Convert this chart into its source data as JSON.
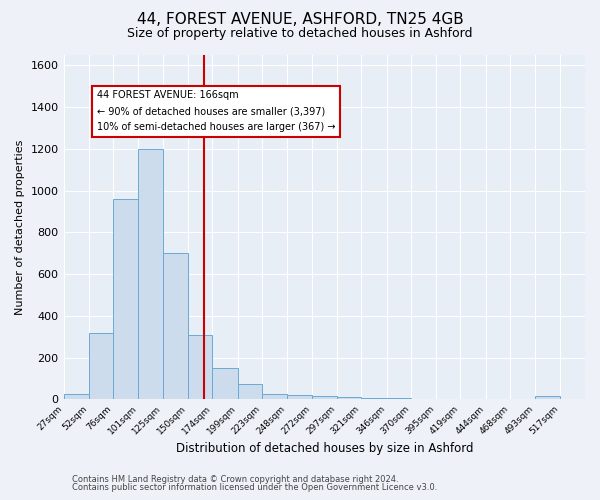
{
  "title": "44, FOREST AVENUE, ASHFORD, TN25 4GB",
  "subtitle": "Size of property relative to detached houses in Ashford",
  "xlabel": "Distribution of detached houses by size in Ashford",
  "ylabel": "Number of detached properties",
  "bin_edges": [
    27,
    52,
    76,
    101,
    125,
    150,
    174,
    199,
    223,
    248,
    272,
    297,
    321,
    346,
    370,
    395,
    419,
    444,
    468,
    493,
    517,
    542
  ],
  "bar_heights": [
    25,
    320,
    960,
    1200,
    700,
    310,
    150,
    75,
    25,
    20,
    15,
    10,
    5,
    5,
    0,
    0,
    0,
    0,
    0,
    15,
    0
  ],
  "bar_color": "#cddcec",
  "bar_edge_color": "#6aaad4",
  "vline_x": 166,
  "vline_color": "#cc0000",
  "annotation_title": "44 FOREST AVENUE: 166sqm",
  "annotation_line1": "← 90% of detached houses are smaller (3,397)",
  "annotation_line2": "10% of semi-detached houses are larger (367) →",
  "annotation_box_edge": "#cc0000",
  "ylim": [
    0,
    1650
  ],
  "yticks": [
    0,
    200,
    400,
    600,
    800,
    1000,
    1200,
    1400,
    1600
  ],
  "x_tick_labels": [
    "27sqm",
    "52sqm",
    "76sqm",
    "101sqm",
    "125sqm",
    "150sqm",
    "174sqm",
    "199sqm",
    "223sqm",
    "248sqm",
    "272sqm",
    "297sqm",
    "321sqm",
    "346sqm",
    "370sqm",
    "395sqm",
    "419sqm",
    "444sqm",
    "468sqm",
    "493sqm",
    "517sqm"
  ],
  "footnote1": "Contains HM Land Registry data © Crown copyright and database right 2024.",
  "footnote2": "Contains public sector information licensed under the Open Government Licence v3.0.",
  "bg_color": "#eef2f8",
  "plot_bg_color": "#e8eef6",
  "grid_color": "#ffffff",
  "title_fontsize": 11,
  "subtitle_fontsize": 9,
  "xlabel_fontsize": 8.5,
  "ylabel_fontsize": 8,
  "footnote_fontsize": 6,
  "ytick_fontsize": 8,
  "xtick_fontsize": 6.5
}
